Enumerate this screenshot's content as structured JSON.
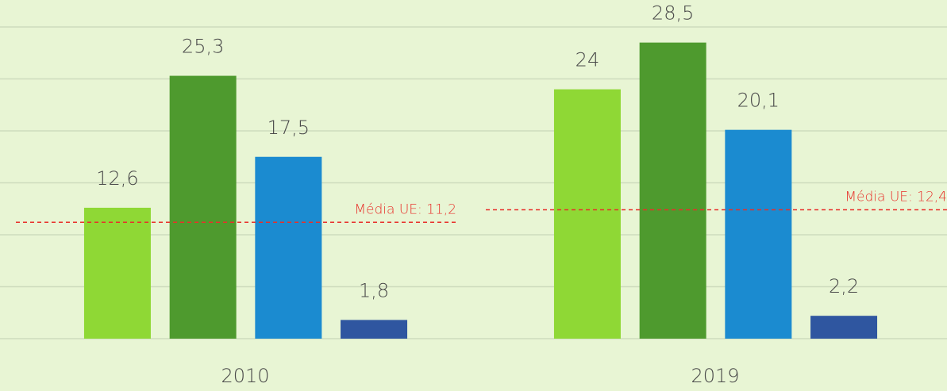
{
  "chart_data": {
    "type": "bar",
    "categories": [
      "2010",
      "2019"
    ],
    "series": [
      {
        "color": "#8fd835",
        "values": [
          12.6,
          24
        ],
        "value_labels": [
          "12,6",
          "24"
        ]
      },
      {
        "color": "#4e9a2e",
        "values": [
          25.3,
          28.5
        ],
        "value_labels": [
          "25,3",
          "28,5"
        ]
      },
      {
        "color": "#1b8bd0",
        "values": [
          17.5,
          20.1
        ],
        "value_labels": [
          "17,5",
          "20,1"
        ]
      },
      {
        "color": "#2f56a0",
        "values": [
          1.8,
          2.2
        ],
        "value_labels": [
          "1,8",
          "2,2"
        ]
      }
    ],
    "reference_lines": [
      {
        "value": 11.2,
        "label": "Média UE: 11,2",
        "color": "#e8302a"
      },
      {
        "value": 12.4,
        "label": "Média UE: 12,4",
        "color": "#e8302a"
      }
    ],
    "ylim": [
      0,
      30
    ],
    "yticks": [
      0,
      5,
      10,
      15,
      20,
      25,
      30
    ],
    "grid": true
  }
}
